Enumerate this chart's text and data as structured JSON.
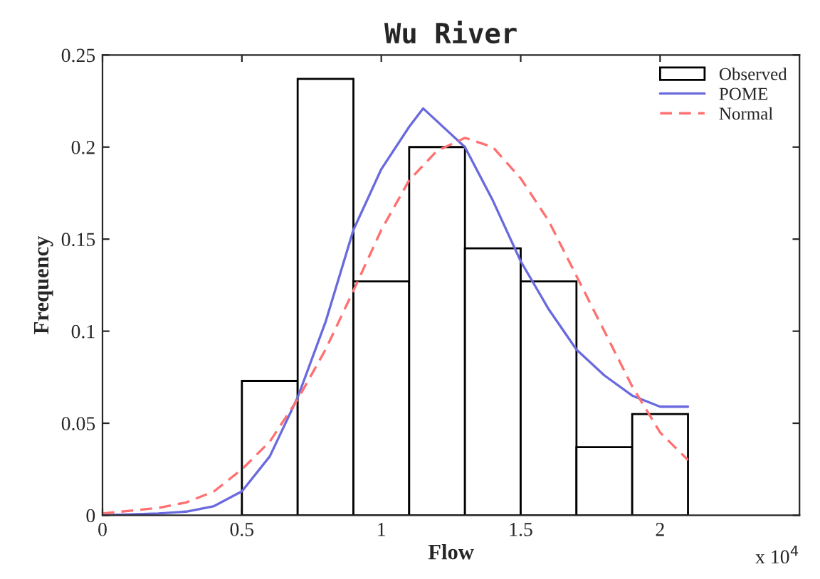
{
  "chart_data": {
    "type": "histogram",
    "title": "Wu River",
    "xlabel": "Flow",
    "ylabel": "Frequency",
    "bins": [
      0.5,
      0.7,
      0.9,
      1.1,
      1.3,
      1.5,
      1.7,
      1.9,
      2.1
    ],
    "series": [
      {
        "name": "Observed",
        "color": "#000000",
        "values": [
          0.073,
          0.237,
          0.127,
          0.2,
          0.145,
          0.127,
          0.037,
          0.055
        ]
      },
      {
        "name": "POME",
        "type": "line",
        "color": "#6a6adf",
        "line_style": "solid",
        "x": [
          0,
          0.2,
          0.3,
          0.4,
          0.5,
          0.6,
          0.7,
          0.8,
          0.9,
          1.0,
          1.1,
          1.15,
          1.3,
          1.4,
          1.5,
          1.6,
          1.7,
          1.8,
          1.9,
          2.0,
          2.1
        ],
        "values": [
          0,
          0.001,
          0.002,
          0.005,
          0.013,
          0.032,
          0.064,
          0.105,
          0.155,
          0.188,
          0.211,
          0.221,
          0.2,
          0.171,
          0.138,
          0.112,
          0.09,
          0.076,
          0.065,
          0.059,
          0.059
        ]
      },
      {
        "name": "Normal",
        "type": "line",
        "color": "#ff7070",
        "line_style": "dashed",
        "x": [
          0,
          0.2,
          0.3,
          0.4,
          0.5,
          0.6,
          0.7,
          0.8,
          0.9,
          1.0,
          1.1,
          1.2,
          1.3,
          1.4,
          1.5,
          1.6,
          1.7,
          1.8,
          1.9,
          2.0,
          2.1
        ],
        "values": [
          0.001,
          0.004,
          0.007,
          0.013,
          0.025,
          0.04,
          0.063,
          0.09,
          0.122,
          0.155,
          0.182,
          0.198,
          0.205,
          0.2,
          0.183,
          0.16,
          0.13,
          0.1,
          0.07,
          0.045,
          0.03
        ]
      }
    ],
    "xlim": [
      0,
      2.5
    ],
    "xticks": [
      0,
      0.5,
      1,
      1.5,
      2
    ],
    "ylim": [
      0,
      0.25
    ],
    "yticks": [
      0,
      0.05,
      0.1,
      0.15,
      0.2,
      0.25
    ],
    "annotations": [
      "x 10$^{4}$"
    ],
    "legend": "top right",
    "grid": false
  }
}
